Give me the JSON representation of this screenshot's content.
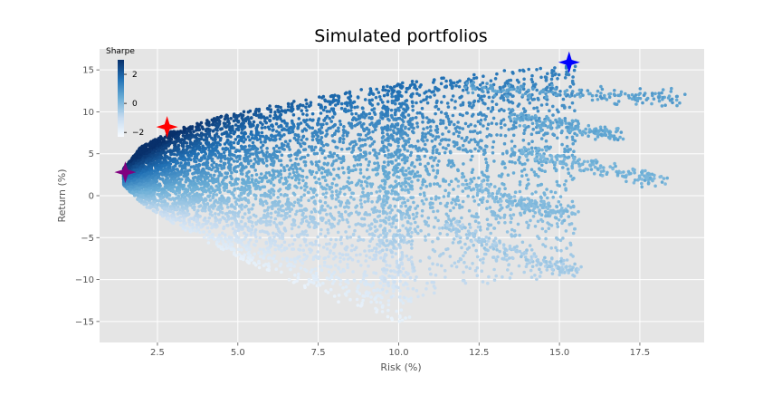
{
  "chart_data": {
    "type": "scatter",
    "title": "Simulated portfolios",
    "xlabel": "Risk (%)",
    "ylabel": "Return (%)",
    "xlim": [
      0.7,
      19.5
    ],
    "ylim": [
      -17.5,
      17.5
    ],
    "xticks": [
      2.5,
      5.0,
      7.5,
      10.0,
      12.5,
      15.0,
      17.5
    ],
    "xtick_labels": [
      "2.5",
      "5.0",
      "7.5",
      "10.0",
      "12.5",
      "15.0",
      "17.5"
    ],
    "yticks": [
      -15,
      -10,
      -5,
      0,
      5,
      10,
      15
    ],
    "ytick_labels": [
      "−15",
      "−10",
      "−5",
      "0",
      "5",
      "10",
      "15"
    ],
    "grid": true,
    "background": "#e5e5e5",
    "colormap": "Blues",
    "colorbar": {
      "title": "Sharpe",
      "range": [
        -2.3,
        3.0
      ],
      "ticks": [
        2,
        0,
        -2
      ],
      "tick_labels": [
        "2",
        "0",
        "−2"
      ],
      "placement": "top-left"
    },
    "cloud_description": "simulated portfolios forming a fan shape; colored by Sharpe ratio (return / risk)",
    "efficient_frontier_upper": [
      [
        1.4,
        3.0
      ],
      [
        2.0,
        5.9
      ],
      [
        3.0,
        7.8
      ],
      [
        4.5,
        9.5
      ],
      [
        6.0,
        10.7
      ],
      [
        7.5,
        11.8
      ],
      [
        9.0,
        12.8
      ],
      [
        10.5,
        13.7
      ],
      [
        12.0,
        14.4
      ],
      [
        13.5,
        15.0
      ],
      [
        15.0,
        15.6
      ]
    ],
    "lower_boundary": [
      [
        1.4,
        1.5
      ],
      [
        2.0,
        -1.0
      ],
      [
        3.5,
        -4.5
      ],
      [
        5.0,
        -7.5
      ],
      [
        6.5,
        -10.0
      ],
      [
        8.0,
        -12.5
      ],
      [
        9.5,
        -14.5
      ],
      [
        10.0,
        -15.3
      ]
    ],
    "outlier_branches": [
      {
        "points": [
          [
            12.0,
            13.0
          ],
          [
            14.0,
            12.5
          ],
          [
            16.0,
            12.0
          ],
          [
            17.5,
            11.8
          ],
          [
            18.7,
            11.5
          ]
        ],
        "sharpe": 0.65
      },
      {
        "points": [
          [
            13.5,
            9.5
          ],
          [
            15.0,
            8.5
          ],
          [
            16.0,
            7.8
          ],
          [
            16.8,
            7.2
          ]
        ],
        "sharpe": 0.5
      },
      {
        "points": [
          [
            13.5,
            5.5
          ],
          [
            15.5,
            3.8
          ],
          [
            17.0,
            2.7
          ],
          [
            18.2,
            1.9
          ]
        ],
        "sharpe": 0.2
      },
      {
        "points": [
          [
            12.0,
            1.5
          ],
          [
            13.5,
            -0.5
          ],
          [
            14.5,
            -1.5
          ],
          [
            15.3,
            -2.0
          ]
        ],
        "sharpe": 0.0
      },
      {
        "points": [
          [
            11.5,
            -3.5
          ],
          [
            13.0,
            -6.0
          ],
          [
            14.5,
            -8.0
          ],
          [
            15.5,
            -9.0
          ]
        ],
        "sharpe": -0.5
      }
    ],
    "markers": [
      {
        "name": "max-return",
        "x": 15.3,
        "y": 15.9,
        "color": "#0000ff",
        "shape": "star"
      },
      {
        "name": "max-sharpe",
        "x": 2.8,
        "y": 8.2,
        "color": "#ff0000",
        "shape": "star"
      },
      {
        "name": "min-volatility",
        "x": 1.5,
        "y": 2.8,
        "color": "#800080",
        "shape": "star"
      }
    ]
  }
}
